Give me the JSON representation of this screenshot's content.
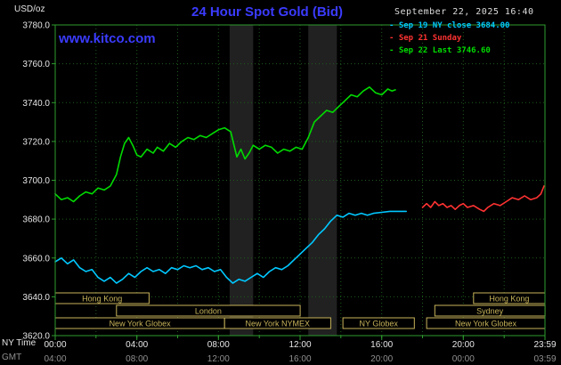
{
  "colors": {
    "background": "#000000",
    "plot_bg": "#000000",
    "border": "#2e9b2e",
    "grid": "#1d5c1d",
    "session": "#c8b45a",
    "text": "#e6e6e6",
    "gmt_text": "#8f8f8f",
    "title": "#3b3bff",
    "band": "#212121"
  },
  "header": {
    "unit_label": "USD/oz",
    "title": "24 Hour Spot Gold (Bid)",
    "datetime": "September 22, 2025 16:40",
    "watermark": "www.kitco.com"
  },
  "legend": [
    {
      "marker": "-",
      "label": "Sep 19 NY close 3684.00",
      "color": "#00c8ff"
    },
    {
      "marker": "-",
      "label": "Sep 21 Sunday",
      "color": "#ff3232"
    },
    {
      "marker": "-",
      "label": "Sep 22 Last 3746.60",
      "color": "#00dc00"
    }
  ],
  "axes": {
    "ny_time_label": "NY Time",
    "gmt_label": "GMT",
    "x_tick_hours": [
      0,
      4,
      8,
      12,
      16,
      20,
      24
    ],
    "x_ticks_ny": [
      "00:00",
      "04:00",
      "08:00",
      "12:00",
      "16:00",
      "20:00",
      "23:59"
    ],
    "x_ticks_gmt": [
      "04:00",
      "08:00",
      "12:00",
      "16:00",
      "20:00",
      "00:00",
      "03:59"
    ],
    "y_ticks": [
      3780,
      3760,
      3740,
      3720,
      3700,
      3680,
      3660,
      3640,
      3620
    ]
  },
  "chart_data": {
    "type": "line",
    "title": "24 Hour Spot Gold (Bid)",
    "ylabel": "USD/oz",
    "xlabel": "NY Time (hours)",
    "xlim": [
      0,
      24
    ],
    "ylim": [
      3620,
      3780
    ],
    "grid": true,
    "legend_position": "top-right",
    "bands": [
      {
        "start": 8.55,
        "end": 9.7
      },
      {
        "start": 12.4,
        "end": 13.8
      }
    ],
    "series": [
      {
        "name": "Sep 19 NY close 3684.00",
        "color": "#00c8ff",
        "points": [
          [
            0,
            3658
          ],
          [
            0.3,
            3660
          ],
          [
            0.6,
            3657
          ],
          [
            0.9,
            3659
          ],
          [
            1.2,
            3655
          ],
          [
            1.5,
            3653
          ],
          [
            1.8,
            3654
          ],
          [
            2.1,
            3650
          ],
          [
            2.4,
            3648
          ],
          [
            2.7,
            3650
          ],
          [
            3.0,
            3647
          ],
          [
            3.3,
            3649
          ],
          [
            3.6,
            3652
          ],
          [
            3.9,
            3650
          ],
          [
            4.2,
            3653
          ],
          [
            4.5,
            3655
          ],
          [
            4.8,
            3653
          ],
          [
            5.1,
            3654
          ],
          [
            5.4,
            3652
          ],
          [
            5.7,
            3655
          ],
          [
            6.0,
            3654
          ],
          [
            6.3,
            3656
          ],
          [
            6.6,
            3655
          ],
          [
            6.9,
            3656
          ],
          [
            7.2,
            3654
          ],
          [
            7.5,
            3655
          ],
          [
            7.8,
            3653
          ],
          [
            8.1,
            3654
          ],
          [
            8.4,
            3650
          ],
          [
            8.7,
            3647
          ],
          [
            9.0,
            3649
          ],
          [
            9.3,
            3648
          ],
          [
            9.6,
            3650
          ],
          [
            9.9,
            3652
          ],
          [
            10.2,
            3650
          ],
          [
            10.5,
            3653
          ],
          [
            10.8,
            3655
          ],
          [
            11.1,
            3654
          ],
          [
            11.4,
            3656
          ],
          [
            11.7,
            3659
          ],
          [
            12.0,
            3662
          ],
          [
            12.3,
            3665
          ],
          [
            12.6,
            3668
          ],
          [
            12.9,
            3672
          ],
          [
            13.2,
            3675
          ],
          [
            13.5,
            3679
          ],
          [
            13.8,
            3682
          ],
          [
            14.1,
            3681
          ],
          [
            14.4,
            3683
          ],
          [
            14.7,
            3682
          ],
          [
            15.0,
            3683
          ],
          [
            15.3,
            3682
          ],
          [
            15.6,
            3683
          ],
          [
            16.0,
            3683.5
          ],
          [
            16.4,
            3684
          ],
          [
            16.8,
            3684
          ],
          [
            17.2,
            3684
          ]
        ]
      },
      {
        "name": "Sep 21 Sunday",
        "color": "#ff3232",
        "points": [
          [
            18.0,
            3686
          ],
          [
            18.2,
            3688
          ],
          [
            18.4,
            3686
          ],
          [
            18.6,
            3689
          ],
          [
            18.8,
            3687
          ],
          [
            19.0,
            3688
          ],
          [
            19.2,
            3686
          ],
          [
            19.4,
            3687
          ],
          [
            19.6,
            3685
          ],
          [
            19.8,
            3687
          ],
          [
            20.0,
            3688
          ],
          [
            20.2,
            3686
          ],
          [
            20.5,
            3687
          ],
          [
            20.8,
            3685
          ],
          [
            21.0,
            3684
          ],
          [
            21.2,
            3686
          ],
          [
            21.5,
            3688
          ],
          [
            21.8,
            3687
          ],
          [
            22.1,
            3689
          ],
          [
            22.4,
            3691
          ],
          [
            22.7,
            3690
          ],
          [
            23.0,
            3692
          ],
          [
            23.3,
            3690
          ],
          [
            23.6,
            3691
          ],
          [
            23.8,
            3693
          ],
          [
            23.95,
            3697
          ]
        ]
      },
      {
        "name": "Sep 22 Last 3746.60",
        "color": "#00dc00",
        "points": [
          [
            0,
            3693
          ],
          [
            0.3,
            3690
          ],
          [
            0.6,
            3691
          ],
          [
            0.9,
            3689
          ],
          [
            1.2,
            3692
          ],
          [
            1.5,
            3694
          ],
          [
            1.8,
            3693
          ],
          [
            2.1,
            3696
          ],
          [
            2.4,
            3695
          ],
          [
            2.7,
            3697
          ],
          [
            3.0,
            3703
          ],
          [
            3.2,
            3712
          ],
          [
            3.4,
            3719
          ],
          [
            3.6,
            3722
          ],
          [
            3.8,
            3718
          ],
          [
            4.0,
            3713
          ],
          [
            4.2,
            3712
          ],
          [
            4.5,
            3716
          ],
          [
            4.8,
            3714
          ],
          [
            5.0,
            3717
          ],
          [
            5.3,
            3715
          ],
          [
            5.6,
            3719
          ],
          [
            5.9,
            3717
          ],
          [
            6.2,
            3720
          ],
          [
            6.5,
            3722
          ],
          [
            6.8,
            3721
          ],
          [
            7.1,
            3723
          ],
          [
            7.4,
            3722
          ],
          [
            7.7,
            3724
          ],
          [
            8.0,
            3726
          ],
          [
            8.3,
            3727
          ],
          [
            8.6,
            3725
          ],
          [
            8.9,
            3712
          ],
          [
            9.1,
            3716
          ],
          [
            9.3,
            3711
          ],
          [
            9.5,
            3714
          ],
          [
            9.7,
            3718
          ],
          [
            10.0,
            3716
          ],
          [
            10.3,
            3718
          ],
          [
            10.6,
            3717
          ],
          [
            10.9,
            3714
          ],
          [
            11.2,
            3716
          ],
          [
            11.5,
            3715
          ],
          [
            11.8,
            3717
          ],
          [
            12.1,
            3716
          ],
          [
            12.4,
            3722
          ],
          [
            12.7,
            3730
          ],
          [
            13.0,
            3733
          ],
          [
            13.3,
            3736
          ],
          [
            13.6,
            3735
          ],
          [
            13.9,
            3738
          ],
          [
            14.2,
            3741
          ],
          [
            14.5,
            3744
          ],
          [
            14.8,
            3743
          ],
          [
            15.1,
            3746
          ],
          [
            15.4,
            3748
          ],
          [
            15.7,
            3745
          ],
          [
            16.0,
            3744
          ],
          [
            16.3,
            3747
          ],
          [
            16.5,
            3746
          ],
          [
            16.67,
            3746.6
          ]
        ]
      }
    ],
    "sessions": [
      {
        "row": 0,
        "label": "Hong Kong",
        "start": 0,
        "end": 4.6
      },
      {
        "row": 0,
        "label": "Hong Kong",
        "start": 20.5,
        "end": 24
      },
      {
        "row": 1,
        "label": "London",
        "start": 3.0,
        "end": 12.0
      },
      {
        "row": 1,
        "label": "Sydney",
        "start": 18.6,
        "end": 24
      },
      {
        "row": 2,
        "label": "New York Globex",
        "start": 0,
        "end": 8.3
      },
      {
        "row": 2,
        "label": "New York NYMEX",
        "start": 8.3,
        "end": 13.5
      },
      {
        "row": 2,
        "label": "NY Globex",
        "start": 14.1,
        "end": 17.6
      },
      {
        "row": 2,
        "label": "New York Globex",
        "start": 18.2,
        "end": 24
      }
    ]
  }
}
